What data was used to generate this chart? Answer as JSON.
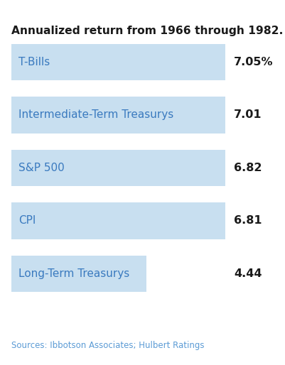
{
  "title": "Annualized return from 1966 through 1982.",
  "categories": [
    "T-Bills",
    "Intermediate-Term Treasurys",
    "S&P 500",
    "CPI",
    "Long-Term Treasurys"
  ],
  "values": [
    7.05,
    7.01,
    6.82,
    6.81,
    4.44
  ],
  "value_labels": [
    "7.05%",
    "7.01",
    "6.82",
    "6.81",
    "4.44"
  ],
  "bar_widths_norm": [
    1.0,
    1.0,
    1.0,
    1.0,
    0.63
  ],
  "bar_color": "#c8dff0",
  "label_color": "#3a7abf",
  "value_color": "#1a1a1a",
  "title_color": "#1a1a1a",
  "source_color": "#5b9bd5",
  "source_text": "Sources: Ibbotson Associates; Hulbert Ratings",
  "background_color": "#ffffff",
  "figsize": [
    4.01,
    5.14
  ],
  "dpi": 100
}
